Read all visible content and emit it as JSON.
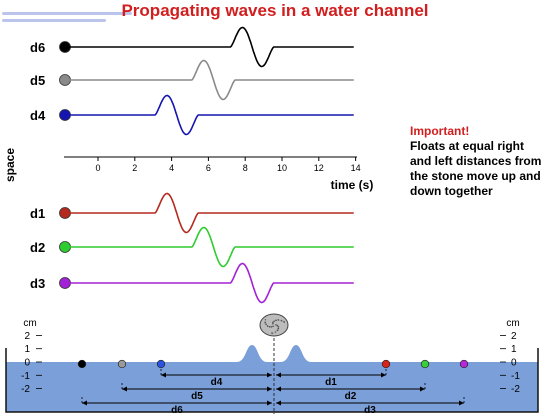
{
  "title": "Propagating waves in a water channel",
  "note": {
    "heading": "Important!",
    "body": "Floats at equal right and left distances from the stone move up and down together"
  },
  "upper_traces": [
    {
      "label": "d6",
      "color": "#000000",
      "start": 7.2
    },
    {
      "label": "d5",
      "color": "#8a8a8a",
      "start": 5.1
    },
    {
      "label": "d4",
      "color": "#1515b0",
      "start": 3.1
    }
  ],
  "lower_traces": [
    {
      "label": "d1",
      "color": "#b52a1e",
      "start": 3.1
    },
    {
      "label": "d2",
      "color": "#2ecc2e",
      "start": 5.1
    },
    {
      "label": "d3",
      "color": "#a321d6",
      "start": 7.2
    }
  ],
  "float_colors": {
    "d1": "#d8221a",
    "d2": "#38d038",
    "d3": "#b42ad8",
    "d4": "#2a52e0",
    "d5": "#9a9a9a",
    "d6": "#000000"
  },
  "time_axis": {
    "ticks": [
      "0",
      "2",
      "4",
      "6",
      "8",
      "10",
      "12",
      "14"
    ],
    "label": "time (s)"
  },
  "space_label": "space",
  "scale": {
    "unit": "cm",
    "ticks": [
      "2",
      "1",
      "0",
      "-1",
      "-2"
    ]
  },
  "distances": {
    "left": [
      "d4",
      "d5",
      "d6"
    ],
    "right": [
      "d1",
      "d2",
      "d3"
    ]
  },
  "colors": {
    "water": "#7b9fd8",
    "water_dark": "#5a7fc4",
    "title": "#d11f1f"
  }
}
